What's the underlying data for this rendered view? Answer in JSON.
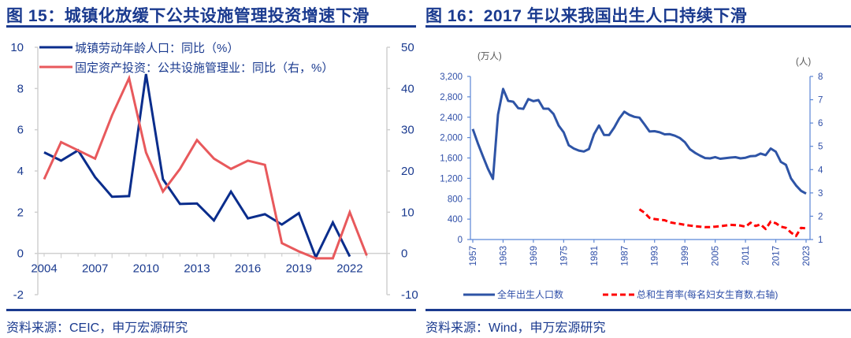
{
  "figure15": {
    "title": "图 15：城镇化放缓下公共设施管理投资增速下滑",
    "source": "资料来源：CEIC，申万宏源研究"
  },
  "figure16": {
    "title": "图 16：2017 年以来我国出生人口持续下滑",
    "source": "资料来源：Wind，申万宏源研究",
    "left_unit": "(万人)",
    "right_unit": "(人)"
  },
  "colors": {
    "title": "#1a3a8f",
    "navy_series": "#0a2d8c",
    "salmon_series": "#e8595c",
    "births_series": "#2e54a6",
    "tfr_series": "#ff0000",
    "axis_left_chart": "#d0d0d0",
    "axis_right_chart": "#5b86d6"
  },
  "chart_data": [
    {
      "type": "line",
      "title": "图 15：城镇化放缓下公共设施管理投资增速下滑",
      "x": [
        2004,
        2005,
        2006,
        2007,
        2008,
        2009,
        2010,
        2011,
        2012,
        2013,
        2014,
        2015,
        2016,
        2017,
        2018,
        2019,
        2020,
        2021,
        2022,
        2023
      ],
      "x_tick_labels": [
        "2004",
        "2007",
        "2010",
        "2013",
        "2016",
        "2019",
        "2022"
      ],
      "y_left_ticks": [
        "10",
        "8",
        "6",
        "4",
        "2",
        "0",
        "-2"
      ],
      "y_right_ticks": [
        "50",
        "40",
        "30",
        "20",
        "10",
        "0",
        "-10"
      ],
      "ylim_left": [
        -2,
        10
      ],
      "ylim_right": [
        -10,
        50
      ],
      "grid": false,
      "legend_position": "top-left",
      "series": [
        {
          "name": "城镇劳动年龄人口：同比（%）",
          "axis": "left",
          "color": "#0a2d8c",
          "values": [
            4.9,
            4.5,
            5.0,
            3.7,
            2.75,
            2.78,
            8.7,
            3.6,
            2.4,
            2.42,
            1.6,
            3.0,
            1.7,
            1.9,
            1.4,
            1.95,
            -0.2,
            1.5,
            -0.15,
            null
          ]
        },
        {
          "name": "固定资产投资：公共设施管理业：同比（右，%）",
          "axis": "right",
          "color": "#e8595c",
          "values": [
            18,
            27,
            25,
            23,
            33.5,
            42.5,
            24.5,
            15,
            20.5,
            27.5,
            23,
            20.5,
            22.5,
            21.5,
            2.5,
            0.5,
            -1.2,
            -1.2,
            10,
            -0.5
          ]
        }
      ]
    },
    {
      "type": "line",
      "title": "图 16：2017 年以来我国出生人口持续下滑",
      "x_start": 1957,
      "x_end": 2023,
      "x_tick_labels": [
        "1957",
        "1963",
        "1969",
        "1975",
        "1981",
        "1987",
        "1993",
        "1999",
        "2005",
        "2011",
        "2017",
        "2023"
      ],
      "y_left_ticks": [
        "3,200",
        "2,800",
        "2,400",
        "2,000",
        "1,600",
        "1,200",
        "800",
        "400",
        "0"
      ],
      "y_right_ticks": [
        "8",
        "7",
        "6",
        "5",
        "4",
        "3",
        "2",
        "1"
      ],
      "ylabel_left": "(万人)",
      "ylabel_right": "(人)",
      "ylim_left": [
        0,
        3200
      ],
      "ylim_right": [
        1,
        8
      ],
      "grid": false,
      "legend_position": "bottom",
      "series": [
        {
          "name": "全年出生人口数",
          "axis": "left",
          "color": "#2e54a6",
          "style": "solid",
          "years": [
            1957,
            1958,
            1959,
            1960,
            1961,
            1962,
            1963,
            1964,
            1965,
            1966,
            1967,
            1968,
            1969,
            1970,
            1971,
            1972,
            1973,
            1974,
            1975,
            1976,
            1977,
            1978,
            1979,
            1980,
            1981,
            1982,
            1983,
            1984,
            1985,
            1986,
            1987,
            1988,
            1989,
            1990,
            1991,
            1992,
            1993,
            1994,
            1995,
            1996,
            1997,
            1998,
            1999,
            2000,
            2001,
            2002,
            2003,
            2004,
            2005,
            2006,
            2007,
            2008,
            2009,
            2010,
            2011,
            2012,
            2013,
            2014,
            2015,
            2016,
            2017,
            2018,
            2019,
            2020,
            2021,
            2022,
            2023
          ],
          "values": [
            2169,
            1889,
            1635,
            1389,
            1189,
            2451,
            2954,
            2721,
            2704,
            2577,
            2563,
            2757,
            2715,
            2736,
            2567,
            2566,
            2463,
            2235,
            2102,
            1849,
            1786,
            1745,
            1726,
            1776,
            2064,
            2237,
            2052,
            2050,
            2196,
            2374,
            2508,
            2445,
            2407,
            2391,
            2258,
            2119,
            2126,
            2104,
            2063,
            2067,
            2038,
            1991,
            1909,
            1771,
            1702,
            1647,
            1599,
            1593,
            1617,
            1585,
            1595,
            1608,
            1615,
            1592,
            1604,
            1635,
            1640,
            1687,
            1655,
            1786,
            1723,
            1523,
            1465,
            1200,
            1062,
            956,
            902
          ]
        },
        {
          "name": "总和生育率(每名妇女生育数,右轴)",
          "axis": "right",
          "color": "#ff0000",
          "style": "dashed",
          "years": [
            1990,
            1991,
            1992,
            1993,
            1994,
            1995,
            1996,
            1997,
            1998,
            1999,
            2000,
            2001,
            2002,
            2003,
            2004,
            2005,
            2006,
            2007,
            2008,
            2009,
            2010,
            2011,
            2012,
            2013,
            2014,
            2015,
            2016,
            2017,
            2018,
            2019,
            2020,
            2021,
            2022,
            2023
          ],
          "values": [
            2.3,
            2.15,
            1.93,
            1.88,
            1.85,
            1.83,
            1.74,
            1.7,
            1.67,
            1.63,
            1.6,
            1.57,
            1.55,
            1.53,
            1.53,
            1.55,
            1.57,
            1.6,
            1.63,
            1.62,
            1.6,
            1.55,
            1.72,
            1.58,
            1.65,
            1.45,
            1.77,
            1.7,
            1.55,
            1.5,
            1.3,
            1.15,
            1.5,
            1.48
          ]
        }
      ]
    }
  ]
}
